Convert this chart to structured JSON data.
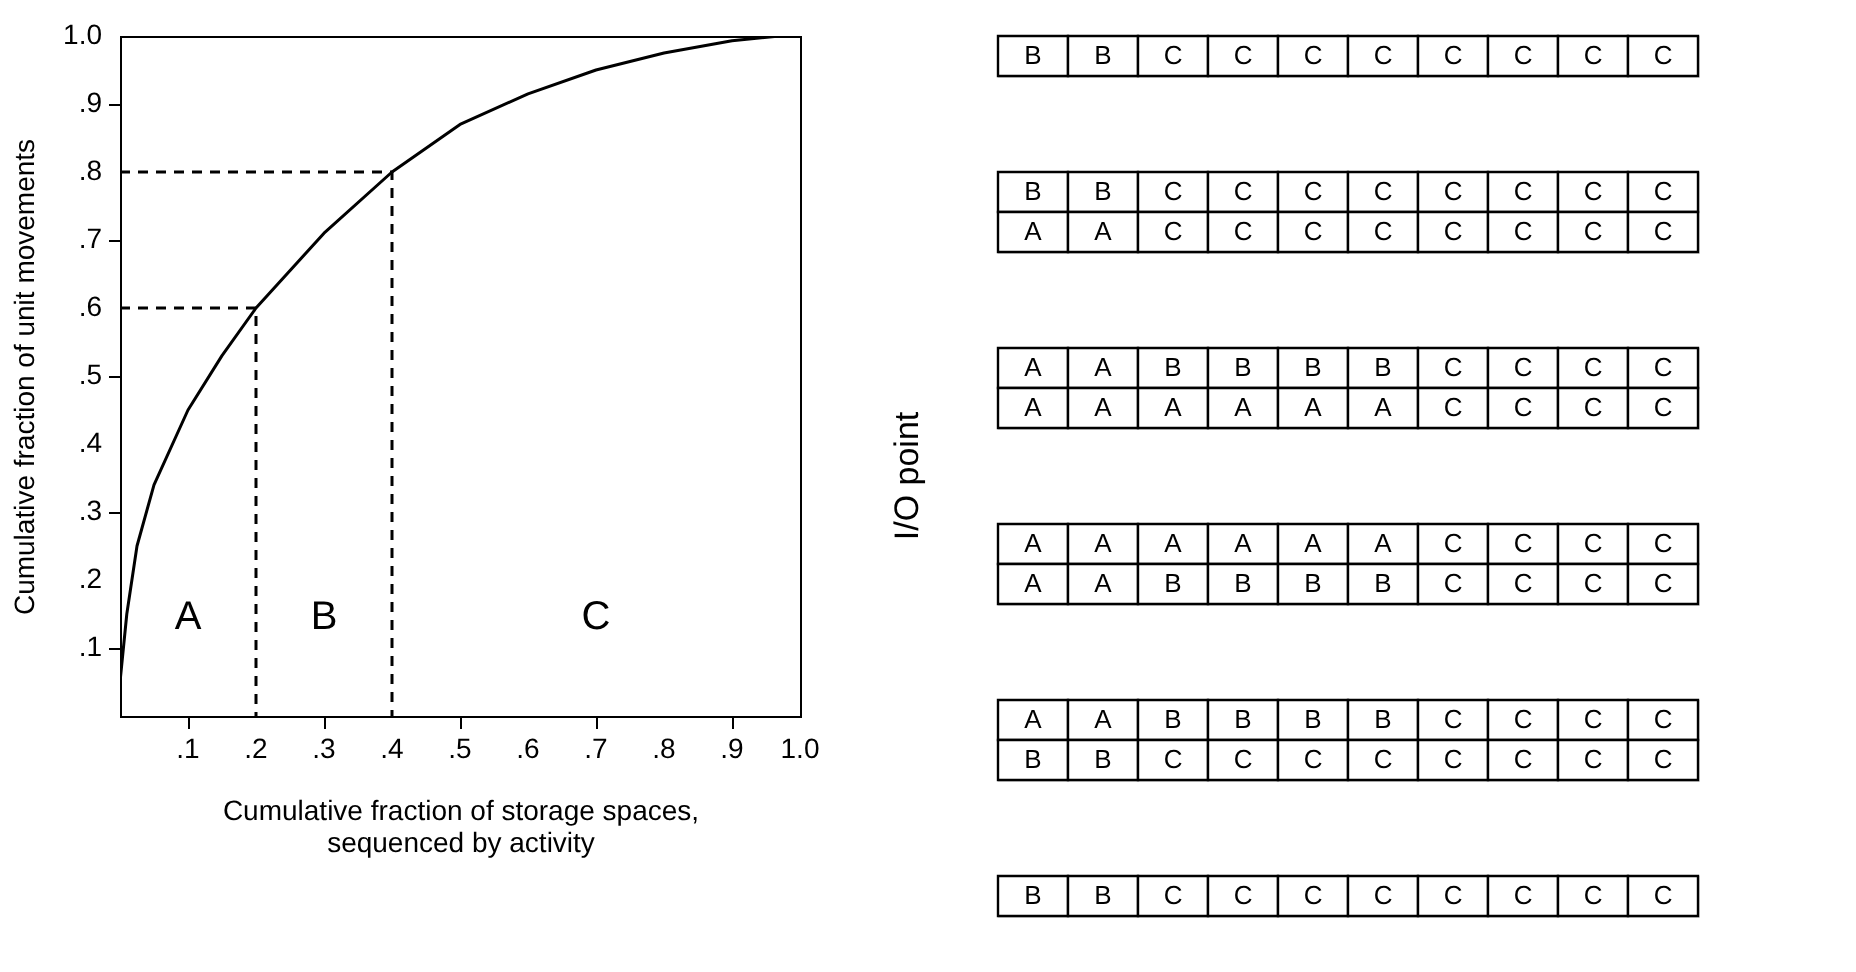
{
  "chart_data": [
    {
      "type": "line",
      "xlabel": "Cumulative fraction of storage spaces, sequenced by activity",
      "ylabel": "Cumulative fraction of unit movements",
      "series": [
        {
          "color": "#000000",
          "line_style": "solid",
          "x": [
            0,
            0.01,
            0.025,
            0.05,
            0.1,
            0.15,
            0.2,
            0.3,
            0.4,
            0.5,
            0.6,
            0.7,
            0.8,
            0.9,
            0.97,
            1.0
          ],
          "values": [
            0.05,
            0.15,
            0.25,
            0.34,
            0.45,
            0.53,
            0.6,
            0.71,
            0.8,
            0.87,
            0.915,
            0.95,
            0.975,
            0.993,
            1.0,
            1.0
          ]
        },
        {
          "color": "#000000",
          "line_style": "dashed",
          "x": [
            0,
            0.2,
            0.2
          ],
          "values": [
            0.6,
            0.6,
            0
          ]
        },
        {
          "color": "#000000",
          "line_style": "dashed",
          "x": [
            0,
            0.4,
            0.4
          ],
          "values": [
            0.8,
            0.8,
            0
          ]
        }
      ],
      "xlim": [
        0,
        1
      ],
      "ylim": [
        0,
        1
      ],
      "xticks": [
        {
          "value": 0.1,
          "label": ".1"
        },
        {
          "value": 0.2,
          "label": ".2"
        },
        {
          "value": 0.3,
          "label": ".3"
        },
        {
          "value": 0.4,
          "label": ".4"
        },
        {
          "value": 0.5,
          "label": ".5"
        },
        {
          "value": 0.6,
          "label": ".6"
        },
        {
          "value": 0.7,
          "label": ".7"
        },
        {
          "value": 0.8,
          "label": ".8"
        },
        {
          "value": 0.9,
          "label": ".9"
        },
        {
          "value": 1,
          "label": "1.0"
        }
      ],
      "yticks": [
        {
          "value": 0.1,
          "label": ".1"
        },
        {
          "value": 0.2,
          "label": ".2"
        },
        {
          "value": 0.3,
          "label": ".3"
        },
        {
          "value": 0.4,
          "label": ".4"
        },
        {
          "value": 0.5,
          "label": ".5"
        },
        {
          "value": 0.6,
          "label": ".6"
        },
        {
          "value": 0.7,
          "label": ".7"
        },
        {
          "value": 0.8,
          "label": ".8"
        },
        {
          "value": 0.9,
          "label": ".9"
        },
        {
          "value": 1,
          "label": "1.0"
        }
      ],
      "annotations": [
        "A",
        "B",
        "C"
      ]
    },
    {
      "type": "other",
      "annotations": [
        "I/O point"
      ]
    },
    {
      "type": "other",
      "annotations": [
        "B B C C C C C C C C"
      ]
    },
    {
      "type": "other",
      "annotations": [
        "B B C C C C C C C C",
        "A A C C C C C C C C"
      ]
    },
    {
      "type": "other",
      "annotations": [
        "A A B B B B C C C C",
        "A A A A A A C C C C"
      ]
    },
    {
      "type": "other",
      "annotations": [
        "A A A A A A C C C C",
        "A A B B B B C C C C"
      ]
    },
    {
      "type": "other",
      "annotations": [
        "A A B B B B C C C C",
        "B B C C C C C C C C"
      ]
    },
    {
      "type": "other",
      "annotations": [
        "B B C C C C C C C C"
      ]
    }
  ]
}
